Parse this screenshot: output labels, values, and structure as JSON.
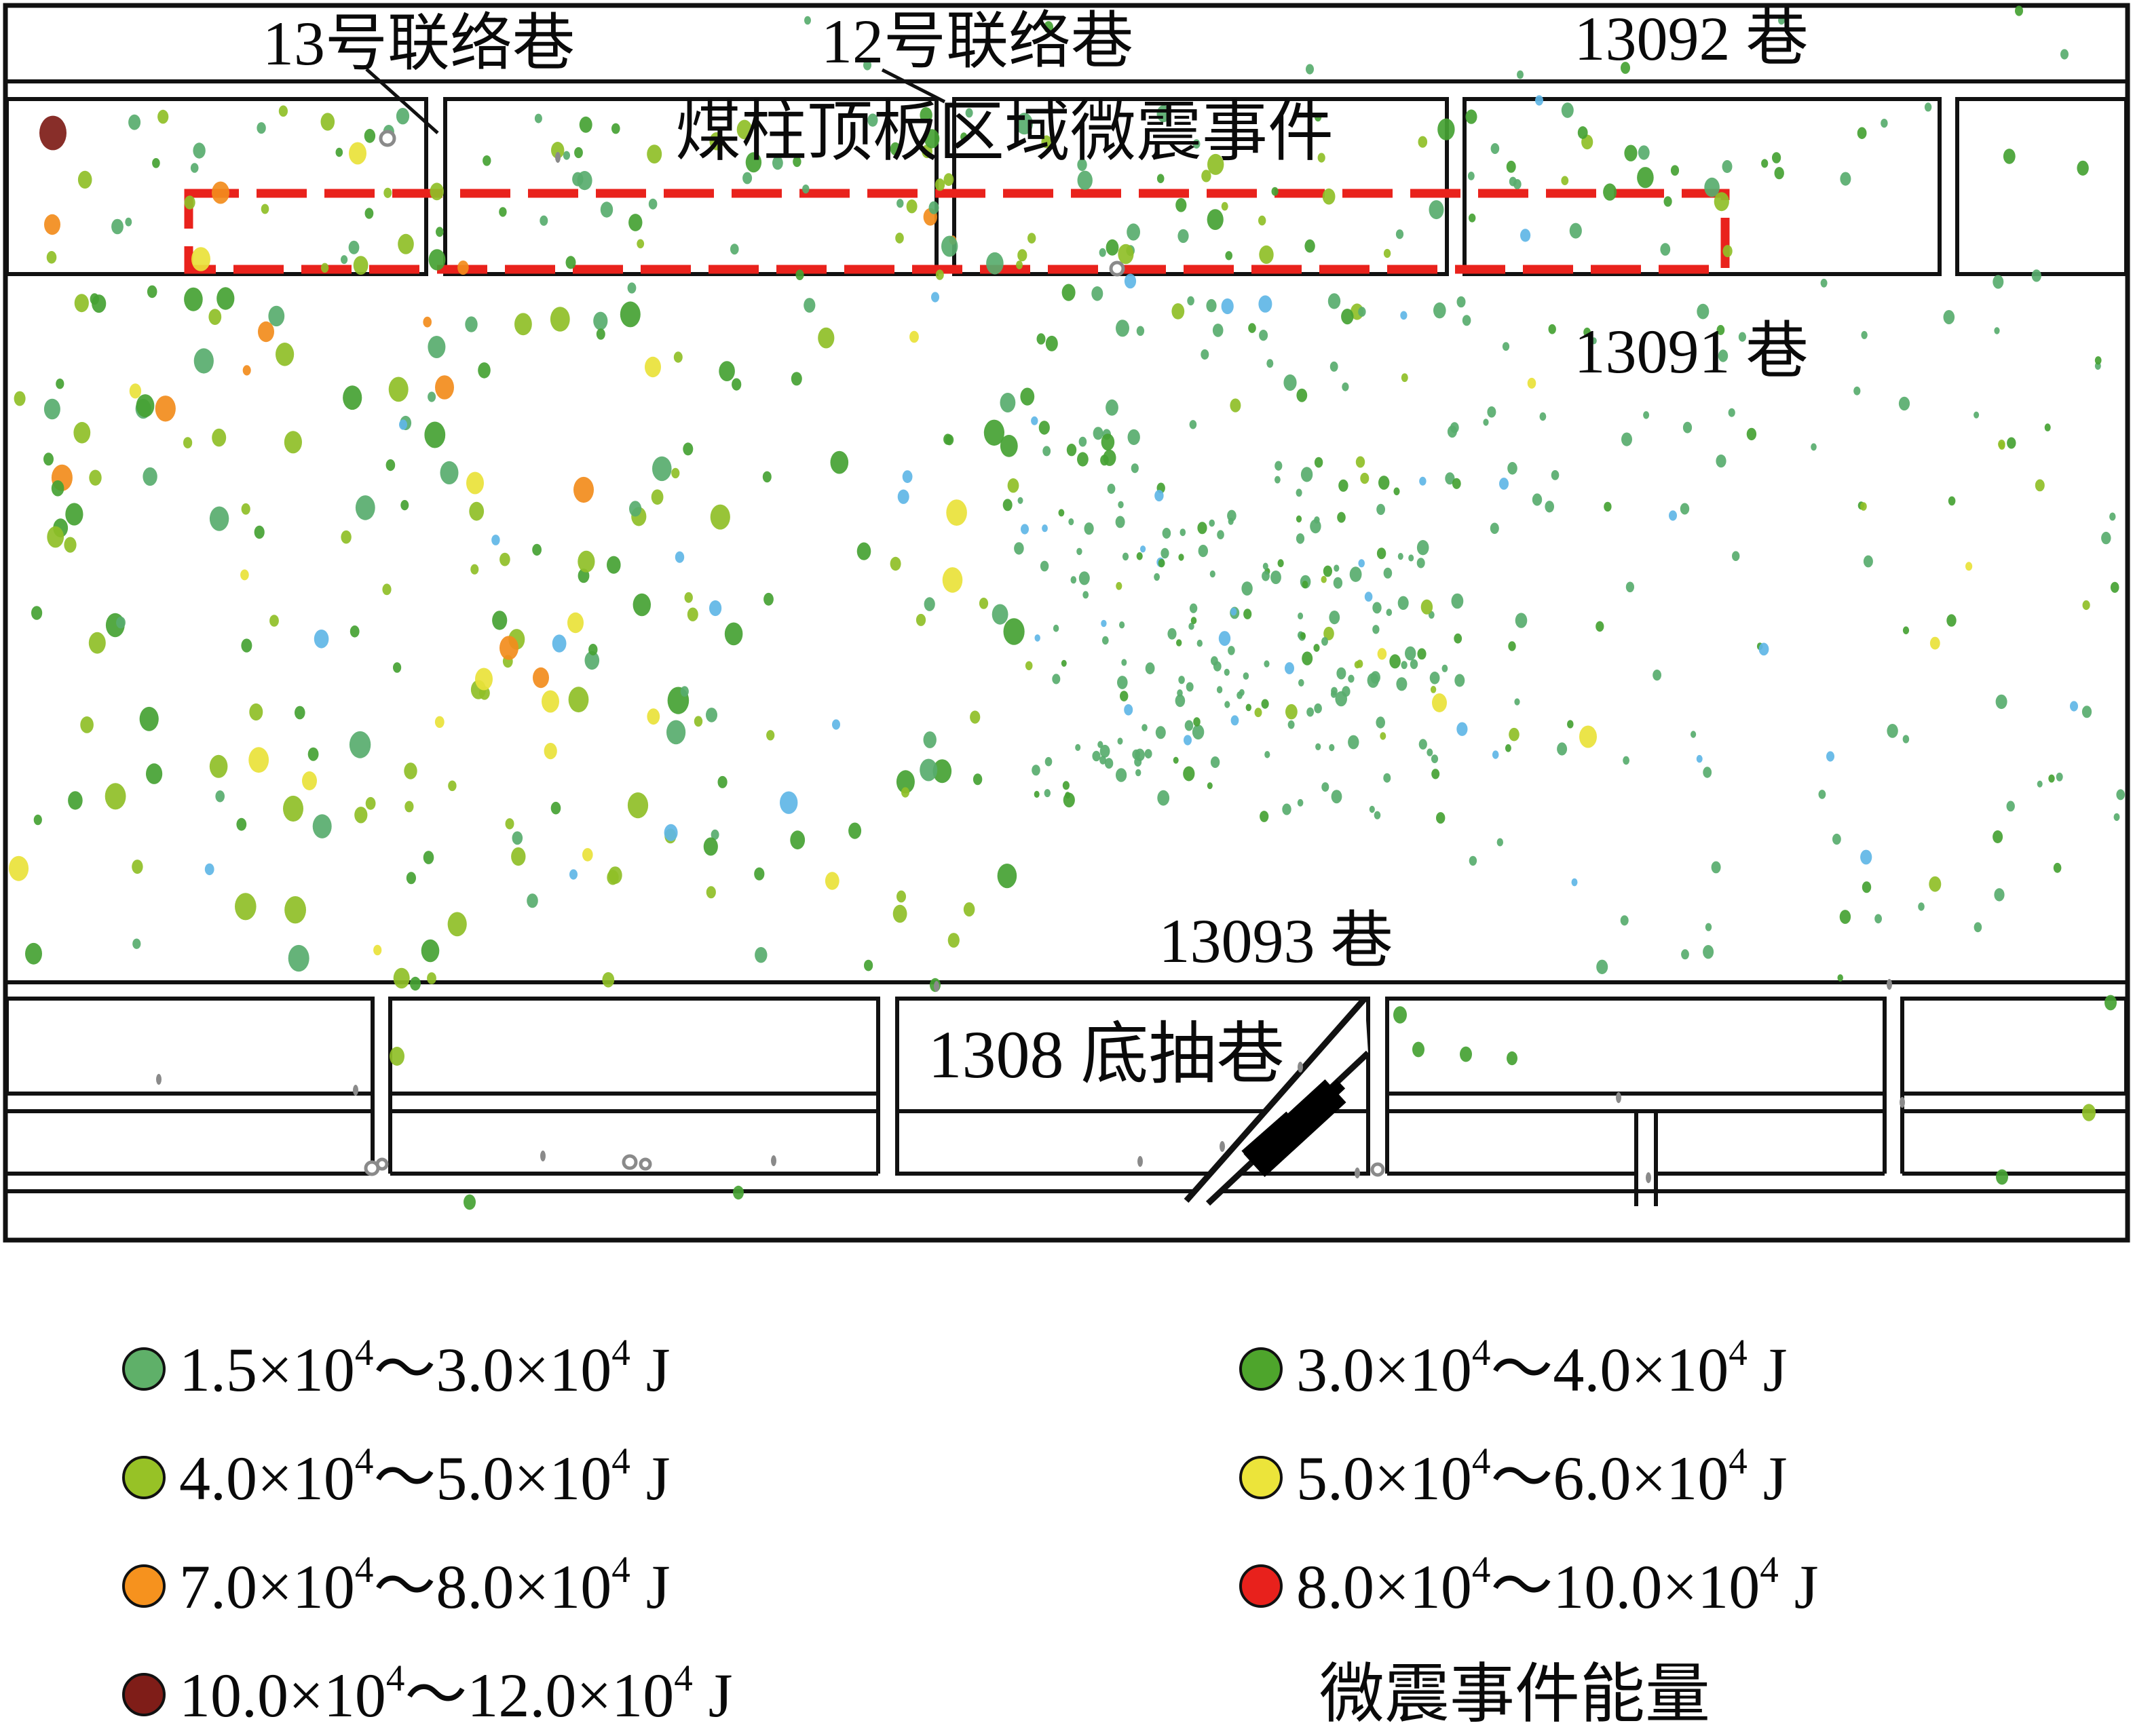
{
  "figure": {
    "labels": {
      "lane13": "13号联络巷",
      "lane12": "12号联络巷",
      "roadway13092": "13092 巷",
      "pillar_zone": "煤柱顶板区域微震事件",
      "roadway13091": "13091 巷",
      "roadway13093": "13093 巷",
      "drainage1308": "1308 底抽巷"
    },
    "zone_box_color": "#e9221c",
    "line_color": "#111111"
  },
  "legend": {
    "title": "微震事件能量",
    "items": [
      {
        "row": 0,
        "col": 0,
        "color": "#5fb069",
        "a": "1.5×10",
        "s1": "4",
        "b": "～3.0×10",
        "s2": "4",
        "c": " J"
      },
      {
        "row": 0,
        "col": 1,
        "color": "#4ea52c",
        "a": "3.0×10",
        "s1": "4",
        "b": "～4.0×10",
        "s2": "4",
        "c": " J"
      },
      {
        "row": 1,
        "col": 0,
        "color": "#97c226",
        "a": "4.0×10",
        "s1": "4",
        "b": "～5.0×10",
        "s2": "4",
        "c": " J"
      },
      {
        "row": 1,
        "col": 1,
        "color": "#ece43a",
        "a": "5.0×10",
        "s1": "4",
        "b": "～6.0×10",
        "s2": "4",
        "c": " J"
      },
      {
        "row": 2,
        "col": 0,
        "color": "#f6921e",
        "a": "7.0×10",
        "s1": "4",
        "b": "～8.0×10",
        "s2": "4",
        "c": " J"
      },
      {
        "row": 2,
        "col": 1,
        "color": "#e8211c",
        "a": "8.0×10",
        "s1": "4",
        "b": "～10.0×10",
        "s2": "4",
        "c": " J"
      },
      {
        "row": 3,
        "col": 0,
        "color": "#7f1d18",
        "a": "10.0×10",
        "s1": "4",
        "b": "～12.0×10",
        "s2": "4",
        "c": " J"
      }
    ]
  },
  "palette": {
    "teal": "#58ad6e",
    "green": "#45a233",
    "yg": "#8fbf27",
    "yellow": "#e9e23a",
    "orange": "#f28c1c",
    "red": "#e8211c",
    "darkred": "#7e1c17",
    "blue": "#5fb6e6",
    "grey": "#8a8a8a"
  },
  "scatter": {
    "seed": 42,
    "clusters": [
      {
        "name": "top_band",
        "n": 120,
        "x": [
          150,
          2560
        ],
        "y": [
          160,
          396
        ],
        "rx": [
          5,
          13
        ],
        "weights": {
          "green": 0.34,
          "yg": 0.3,
          "teal": 0.26,
          "yellow": 0.05,
          "blue": 0.03,
          "orange": 0.02
        }
      },
      {
        "name": "top_band_right",
        "n": 16,
        "x": [
          2160,
          3100
        ],
        "y": [
          152,
          270
        ],
        "rx": [
          5,
          9
        ],
        "weights": {
          "teal": 0.6,
          "green": 0.4
        }
      },
      {
        "name": "left_field",
        "n": 195,
        "x": [
          25,
          1520
        ],
        "y": [
          405,
          1445
        ],
        "rx": [
          6,
          16
        ],
        "weights": {
          "green": 0.37,
          "yg": 0.3,
          "teal": 0.23,
          "yellow": 0.05,
          "orange": 0.02,
          "blue": 0.03
        }
      },
      {
        "name": "mid_upper",
        "n": 50,
        "x": [
          1520,
          2160
        ],
        "y": [
          405,
          700
        ],
        "rx": [
          5,
          10
        ],
        "weights": {
          "teal": 0.52,
          "green": 0.28,
          "yg": 0.14,
          "blue": 0.06
        }
      },
      {
        "name": "mid_dense",
        "n": 150,
        "x": [
          1500,
          2160
        ],
        "y": [
          690,
          1210
        ],
        "rx": [
          4,
          9
        ],
        "weights": {
          "teal": 0.64,
          "green": 0.21,
          "yg": 0.09,
          "blue": 0.05,
          "yellow": 0.01
        }
      },
      {
        "name": "mid_core",
        "n": 55,
        "x": [
          1640,
          2110
        ],
        "y": [
          810,
          1130
        ],
        "rx": [
          4,
          8
        ],
        "weights": {
          "teal": 0.75,
          "green": 0.2,
          "blue": 0.05
        }
      },
      {
        "name": "right_field",
        "n": 105,
        "x": [
          2160,
          3125
        ],
        "y": [
          405,
          1448
        ],
        "rx": [
          4,
          9
        ],
        "weights": {
          "teal": 0.7,
          "green": 0.17,
          "yg": 0.07,
          "blue": 0.04,
          "yellow": 0.02
        }
      },
      {
        "name": "left_edge",
        "n": 12,
        "x": [
          22,
          150
        ],
        "y": [
          250,
          1360
        ],
        "rx": [
          7,
          14
        ],
        "weights": {
          "green": 0.5,
          "yg": 0.5
        }
      }
    ],
    "special": {
      "darkred": [
        [
          78,
          196,
          20
        ]
      ],
      "orange": [
        [
          325,
          284,
          13
        ],
        [
          77,
          331,
          12
        ],
        [
          655,
          571,
          14
        ],
        [
          860,
          722,
          15
        ],
        [
          750,
          955,
          14
        ],
        [
          797,
          999,
          12
        ],
        [
          392,
          489,
          12
        ]
      ],
      "yellow": [
        [
          527,
          226,
          13
        ],
        [
          296,
          382,
          14
        ],
        [
          700,
          712,
          13
        ],
        [
          713,
          1001,
          13
        ],
        [
          811,
          1034,
          13
        ],
        [
          848,
          918,
          12
        ],
        [
          962,
          541,
          12
        ],
        [
          2340,
          1086,
          13
        ],
        [
          2121,
          1036,
          11
        ],
        [
          456,
          1151,
          11
        ]
      ],
      "yg": [
        [
          585,
          1557,
          11
        ],
        [
          432,
          1192,
          15
        ],
        [
          3078,
          1640,
          10
        ]
      ],
      "green": [
        [
          692,
          1772,
          9
        ],
        [
          2063,
          1496,
          10
        ],
        [
          2090,
          1547,
          9
        ],
        [
          2160,
          1554,
          9
        ],
        [
          3110,
          1478,
          9
        ],
        [
          2950,
          1735,
          9
        ],
        [
          2228,
          1560,
          8
        ],
        [
          612,
          1450,
          8
        ],
        [
          1378,
          1452,
          8
        ],
        [
          1088,
          1758,
          8
        ],
        [
          1545,
          40,
          7
        ],
        [
          2395,
          100,
          7
        ],
        [
          2975,
          16,
          6
        ]
      ],
      "teal": [
        [
          1278,
          96,
          6
        ],
        [
          1930,
          102,
          6
        ],
        [
          3042,
          80,
          6
        ],
        [
          2625,
          30,
          5
        ],
        [
          2240,
          110,
          5
        ],
        [
          1190,
          30,
          5
        ]
      ],
      "blue": [
        [
          594,
          626,
          6
        ],
        [
          1510,
          780,
          6
        ],
        [
          2268,
          148,
          6
        ],
        [
          1232,
          1068,
          6
        ],
        [
          2216,
          713,
          7
        ],
        [
          3056,
          1041,
          6
        ],
        [
          1750,
          1091,
          6
        ],
        [
          1900,
          985,
          7
        ],
        [
          845,
          1289,
          6
        ],
        [
          2465,
          760,
          6
        ],
        [
          1378,
          438,
          6
        ],
        [
          2697,
          1115,
          6
        ]
      ],
      "rings": [
        [
          571,
          204,
          10
        ],
        [
          1646,
          396,
          9
        ],
        [
          548,
          1722,
          9
        ],
        [
          563,
          1716,
          7
        ],
        [
          928,
          1713,
          9
        ],
        [
          951,
          1716,
          7
        ],
        [
          2030,
          1724,
          8
        ]
      ],
      "ticks": [
        [
          234,
          1591
        ],
        [
          524,
          1607
        ],
        [
          800,
          1704
        ],
        [
          1140,
          1711
        ],
        [
          1801,
          1690
        ],
        [
          1916,
          1573
        ],
        [
          1680,
          1712
        ],
        [
          2385,
          1618
        ],
        [
          2784,
          1451
        ],
        [
          2803,
          1625
        ],
        [
          2429,
          1736
        ],
        [
          2000,
          1729
        ],
        [
          822,
          232
        ],
        [
          1380,
          1454
        ]
      ]
    }
  }
}
